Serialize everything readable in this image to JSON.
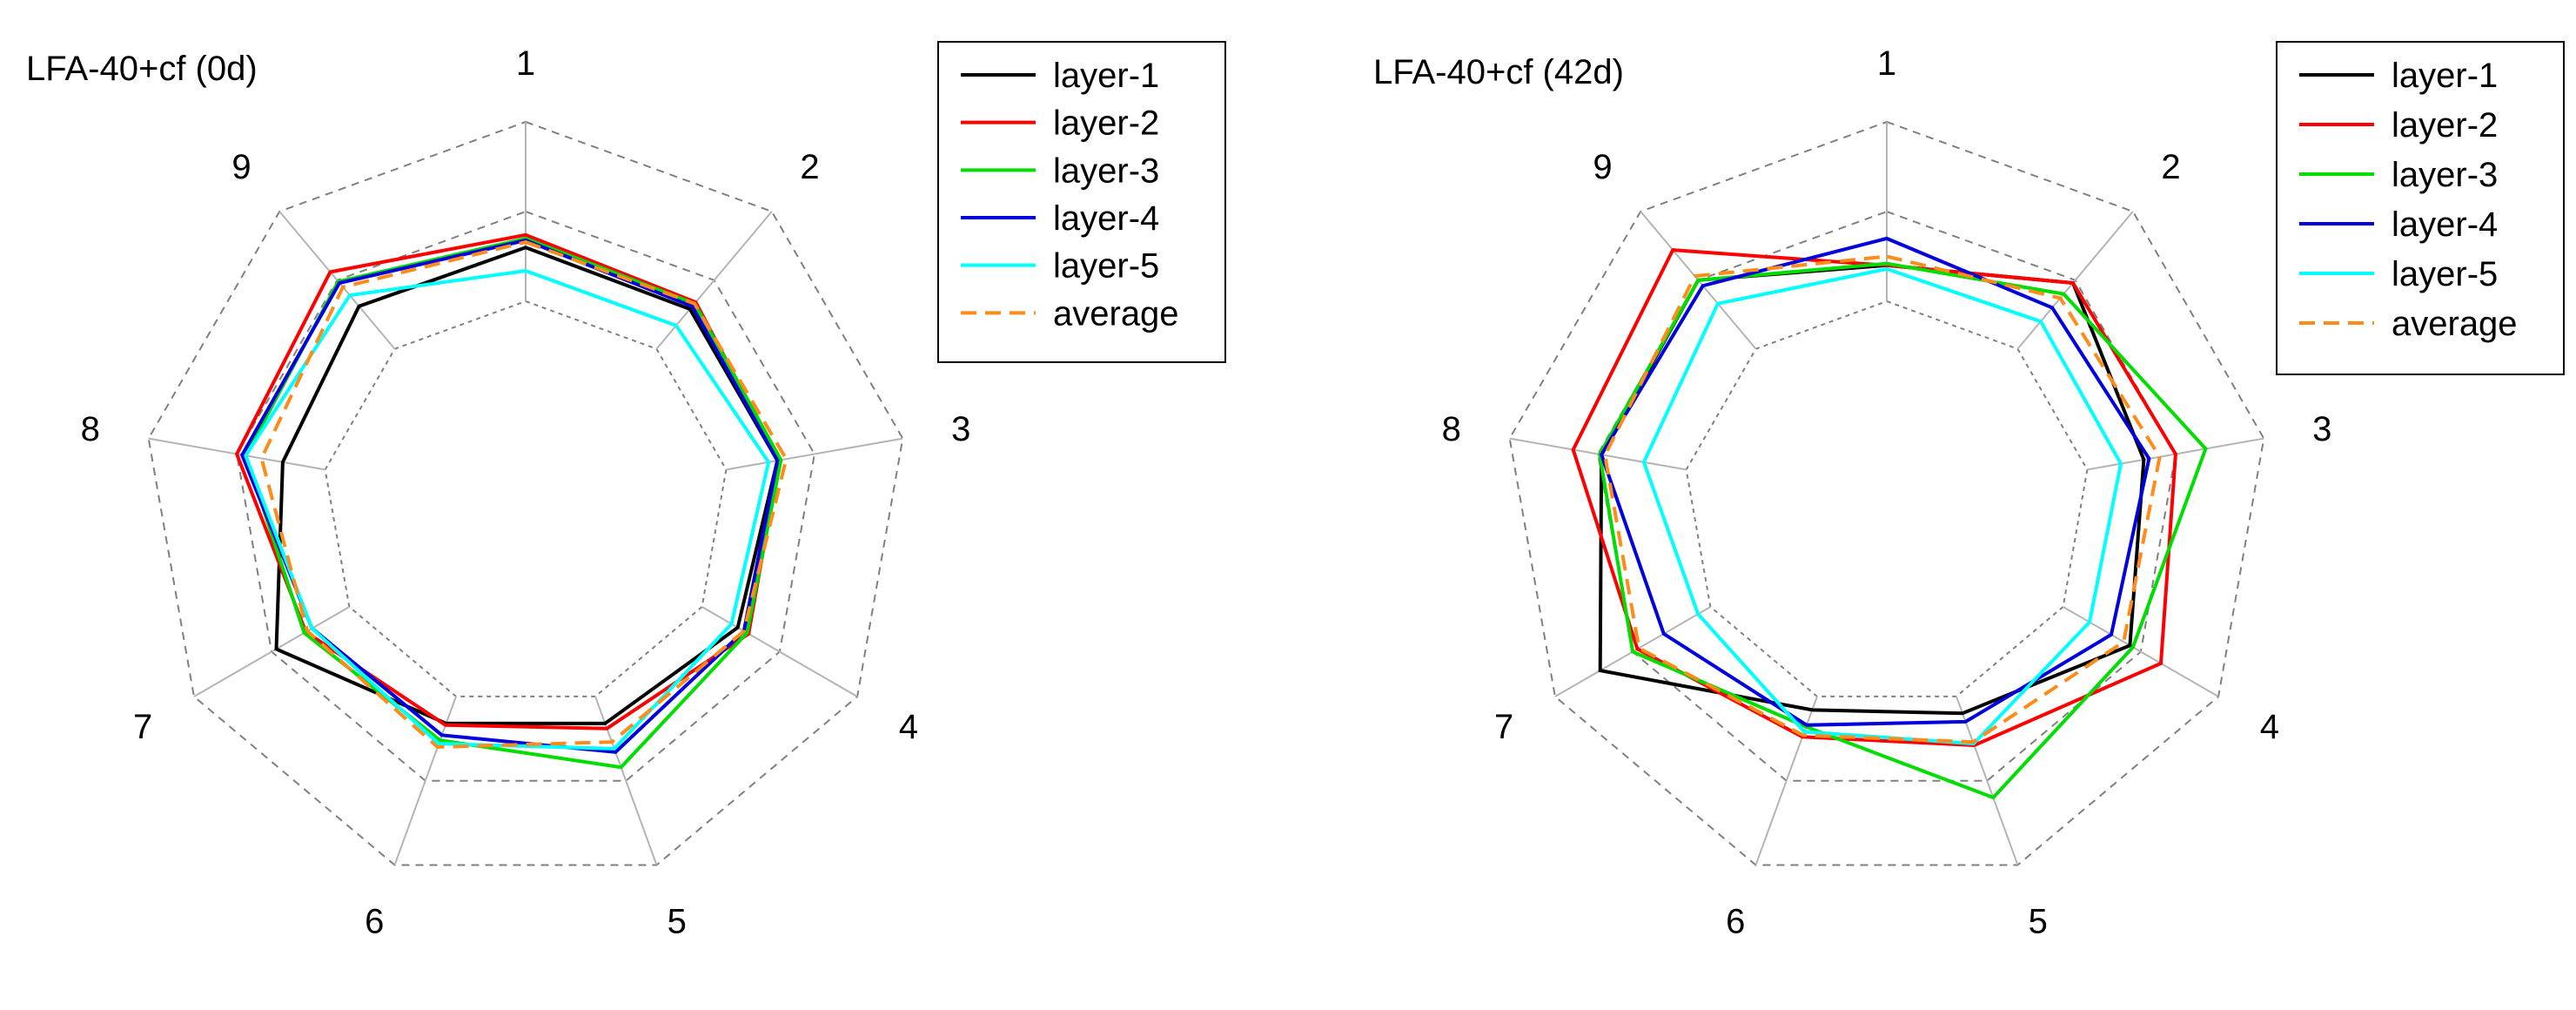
{
  "chart_data": [
    {
      "type": "radar",
      "title": "LFA-40+cf (0d)",
      "axes": [
        "1",
        "2",
        "3",
        "4",
        "5",
        "6",
        "7",
        "8",
        "9"
      ],
      "grid": true,
      "legend_position": "top-right",
      "series": [
        {
          "name": "layer-1",
          "color": "#000000",
          "dash": false,
          "values": [
            0.3,
            0.29,
            0.29,
            0.23,
            0.16,
            0.16,
            0.47,
            0.24,
            0.31
          ]
        },
        {
          "name": "layer-2",
          "color": "#ff0000",
          "dash": false,
          "values": [
            0.37,
            0.34,
            0.3,
            0.3,
            0.19,
            0.17,
            0.28,
            0.5,
            0.56
          ]
        },
        {
          "name": "layer-3",
          "color": "#00dd00",
          "dash": false,
          "values": [
            0.35,
            0.33,
            0.31,
            0.29,
            0.42,
            0.26,
            0.29,
            0.45,
            0.49
          ]
        },
        {
          "name": "layer-4",
          "color": "#0000dd",
          "dash": false,
          "values": [
            0.34,
            0.31,
            0.29,
            0.27,
            0.33,
            0.23,
            0.24,
            0.47,
            0.48
          ]
        },
        {
          "name": "layer-5",
          "color": "#00ffff",
          "dash": false,
          "values": [
            0.17,
            0.17,
            0.24,
            0.19,
            0.31,
            0.28,
            0.24,
            0.45,
            0.39
          ]
        },
        {
          "name": "average",
          "color": "#ff8c1a",
          "dash": true,
          "values": [
            0.33,
            0.33,
            0.34,
            0.27,
            0.27,
            0.3,
            0.27,
            0.36,
            0.45
          ]
        }
      ]
    },
    {
      "type": "radar",
      "title": "LFA-40+cf (42d)",
      "axes": [
        "1",
        "2",
        "3",
        "4",
        "5",
        "6",
        "7",
        "8",
        "9"
      ],
      "grid": true,
      "legend_position": "top-right",
      "series": [
        {
          "name": "layer-1",
          "color": "#000000",
          "dash": false,
          "values": [
            0.2,
            0.48,
            0.32,
            0.43,
            0.1,
            0.08,
            0.71,
            0.48,
            0.5
          ]
        },
        {
          "name": "layer-2",
          "color": "#ff0000",
          "dash": false,
          "values": [
            0.2,
            0.48,
            0.5,
            0.63,
            0.29,
            0.24,
            0.47,
            0.64,
            0.72
          ]
        },
        {
          "name": "layer-3",
          "color": "#00dd00",
          "dash": false,
          "values": [
            0.21,
            0.4,
            0.67,
            0.45,
            0.6,
            0.18,
            0.5,
            0.49,
            0.5
          ]
        },
        {
          "name": "layer-4",
          "color": "#0000dd",
          "dash": false,
          "values": [
            0.35,
            0.3,
            0.35,
            0.31,
            0.15,
            0.17,
            0.3,
            0.48,
            0.46
          ]
        },
        {
          "name": "layer-5",
          "color": "#00ffff",
          "dash": false,
          "values": [
            0.18,
            0.2,
            0.19,
            0.17,
            0.28,
            0.21,
            0.08,
            0.24,
            0.33
          ]
        },
        {
          "name": "average",
          "color": "#ff8c1a",
          "dash": true,
          "values": [
            0.25,
            0.37,
            0.41,
            0.39,
            0.27,
            0.23,
            0.46,
            0.46,
            0.53
          ]
        }
      ]
    }
  ]
}
